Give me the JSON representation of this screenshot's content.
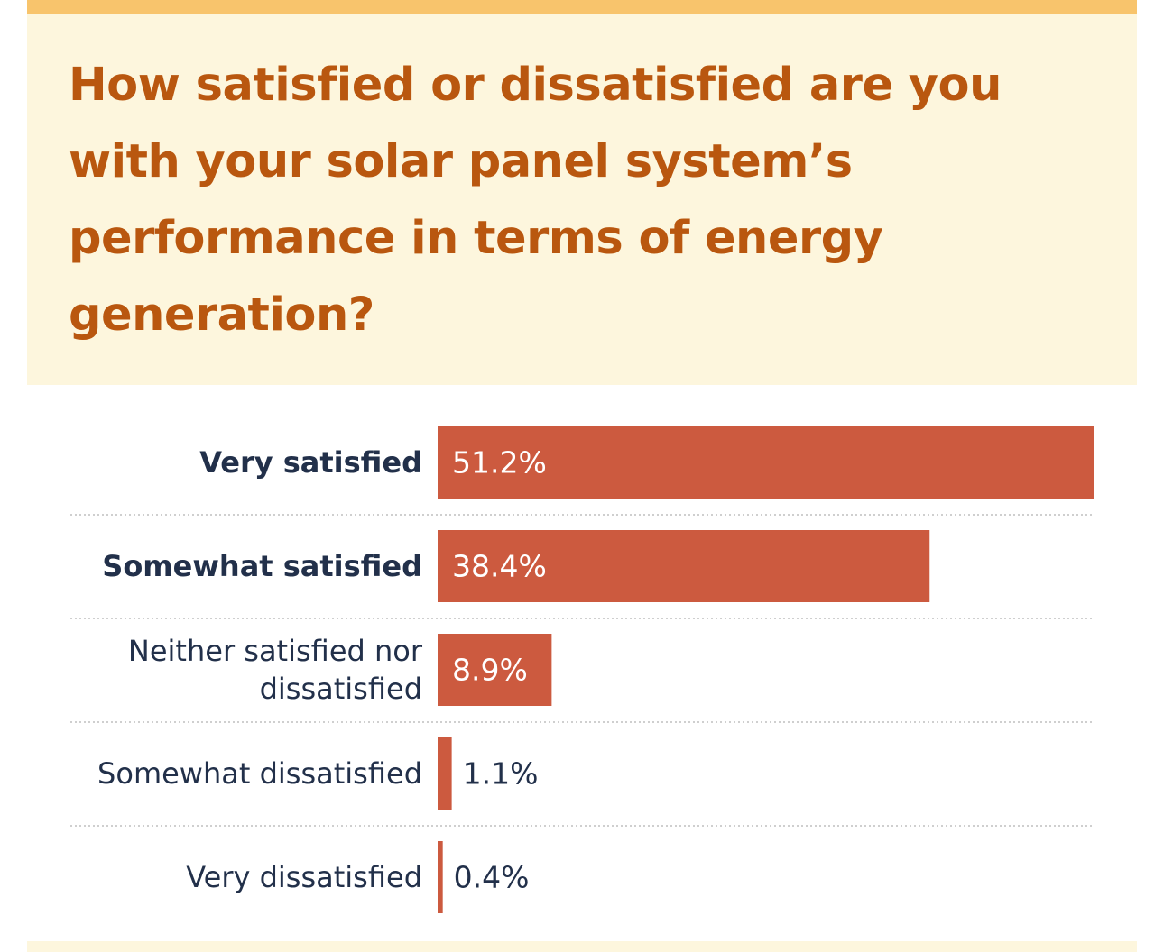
{
  "chart_data": {
    "type": "bar",
    "orientation": "horizontal",
    "title": "How satisfied or dissatisfied are you with your solar panel system’s performance in terms of energy generation?",
    "categories": [
      [
        "Very satisfied"
      ],
      [
        "Somewhat satisfied"
      ],
      [
        "Neither satisfied nor",
        "dissatisfied"
      ],
      [
        "Somewhat dissatisfied"
      ],
      [
        "Very dissatisfied"
      ]
    ],
    "values": [
      51.2,
      38.4,
      8.9,
      1.1,
      0.4
    ],
    "value_labels": [
      "51.2%",
      "38.4%",
      "8.9%",
      "1.1%",
      "0.4%"
    ],
    "bold_categories": [
      true,
      true,
      false,
      false,
      false
    ],
    "xlim": [
      0,
      51.2
    ],
    "grid": false,
    "colors": {
      "bar": "#cc5a3f",
      "title": "#b9570f",
      "label": "#22304a",
      "value_inside": "#ffffff",
      "value_outside": "#22304a",
      "header_background": "#fdf6dd",
      "top_strip": "#f8c46c",
      "separator": "#cfcfcf"
    }
  }
}
